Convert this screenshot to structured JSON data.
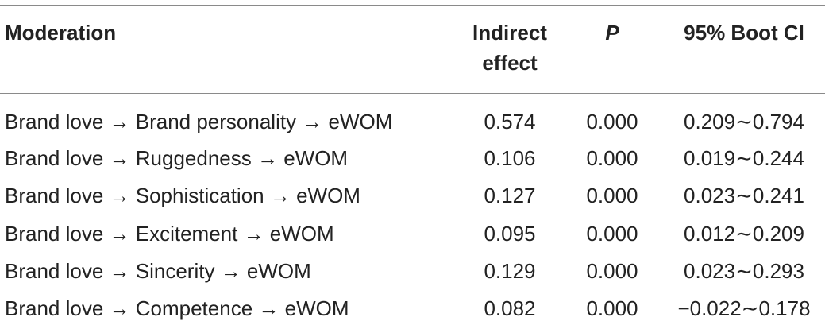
{
  "table": {
    "headers": {
      "moderation": "Moderation",
      "indirect_line1": "Indirect",
      "indirect_line2": "effect",
      "p": "P",
      "ci": "95% Boot CI"
    },
    "rows": [
      {
        "moderation": "Brand love → Brand personality → eWOM",
        "indirect": "0.574",
        "p": "0.000",
        "ci": "0.209∼0.794"
      },
      {
        "moderation": "Brand love → Ruggedness → eWOM",
        "indirect": "0.106",
        "p": "0.000",
        "ci": "0.019∼0.244"
      },
      {
        "moderation": "Brand love → Sophistication → eWOM",
        "indirect": "0.127",
        "p": "0.000",
        "ci": "0.023∼0.241"
      },
      {
        "moderation": "Brand love → Excitement → eWOM",
        "indirect": "0.095",
        "p": "0.000",
        "ci": "0.012∼0.209"
      },
      {
        "moderation": "Brand love → Sincerity → eWOM",
        "indirect": "0.129",
        "p": "0.000",
        "ci": "0.023∼0.293"
      },
      {
        "moderation": "Brand love → Competence → eWOM",
        "indirect": "0.082",
        "p": "0.000",
        "ci": "−0.022∼0.178"
      }
    ]
  }
}
